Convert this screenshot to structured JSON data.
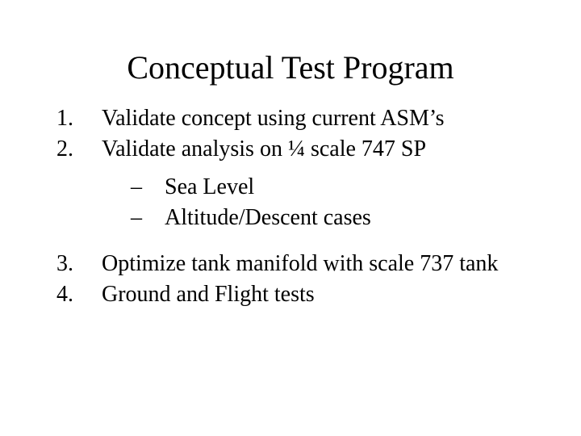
{
  "colors": {
    "background": "#ffffff",
    "text": "#000000"
  },
  "typography": {
    "family": "Times New Roman, serif",
    "title_fontsize": 40,
    "body_fontsize": 28
  },
  "title": "Conceptual Test Program",
  "items": [
    {
      "num": "1.",
      "text": "Validate concept using current ASM’s"
    },
    {
      "num": "2.",
      "text": "Validate analysis on ¼ scale 747 SP"
    }
  ],
  "subitems": [
    {
      "bullet": "–",
      "text": "Sea Level"
    },
    {
      "bullet": "–",
      "text": "Altitude/Descent cases"
    }
  ],
  "items2": [
    {
      "num": "3.",
      "text": "Optimize tank manifold with scale 737 tank"
    },
    {
      "num": "4.",
      "text": "Ground and Flight tests"
    }
  ]
}
